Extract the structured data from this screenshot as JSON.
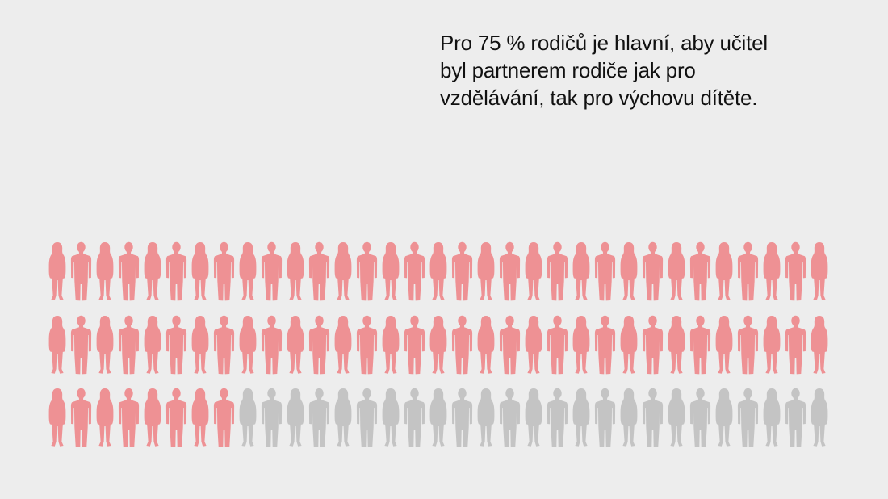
{
  "headline": "Pro 75 % rodičů je hlavní, aby učitel byl partnerem rodiče jak pro vzdělávání, tak pro výchovu dítěte.",
  "colors": {
    "highlight": "#ee9194",
    "rest": "#c4c4c4",
    "background": "#ededed",
    "text": "#111111"
  },
  "chart_data": {
    "type": "pictogram",
    "icon": "person-silhouette-icon",
    "total_icons": 99,
    "rows": 3,
    "icons_per_row": 33,
    "highlighted_icons": 74,
    "series": [
      {
        "value": 75,
        "unit": "%",
        "color": "#ee9194"
      },
      {
        "value": 25,
        "unit": "%",
        "color": "#c4c4c4"
      }
    ]
  }
}
